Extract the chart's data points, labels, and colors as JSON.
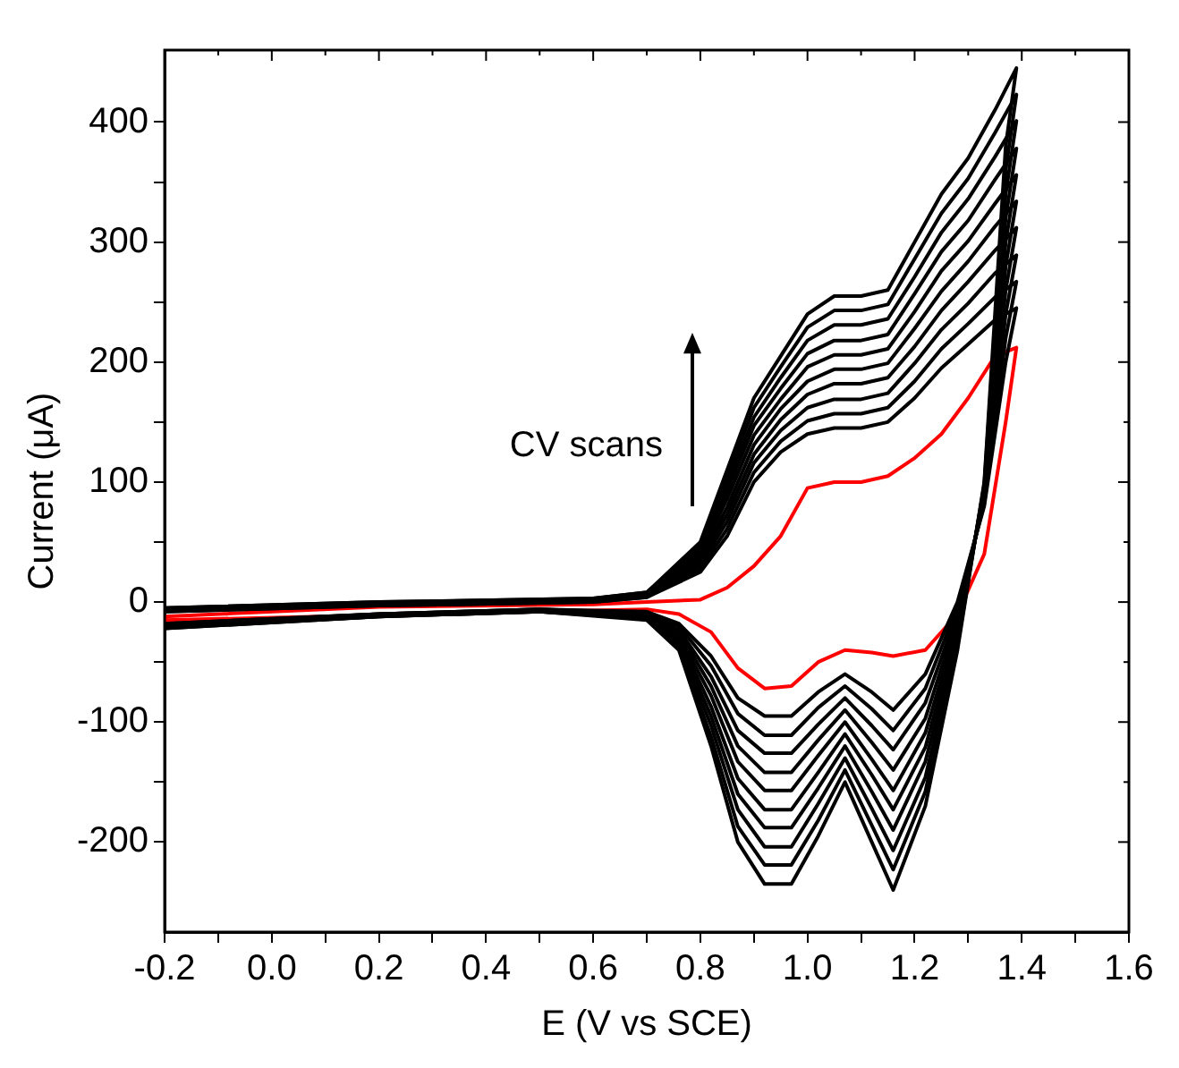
{
  "chart_data": {
    "type": "line",
    "xlabel": "E (V vs SCE)",
    "ylabel": "Current (μA)",
    "annotations": [
      "CV scans"
    ],
    "marker": "none",
    "line_style": "solid",
    "grid": false,
    "legend": false,
    "xlim": [
      -0.2,
      1.6
    ],
    "ylim": [
      -275,
      460
    ],
    "xticks": [
      -0.2,
      {
        "value": -0.1,
        "label": null
      },
      "0.0",
      {
        "value": 0.1,
        "label": null
      },
      0.2,
      {
        "value": 0.3,
        "label": null
      },
      0.4,
      {
        "value": 0.5,
        "label": null
      },
      0.6,
      {
        "value": 0.7,
        "label": null
      },
      0.8,
      {
        "value": 0.9,
        "label": null
      },
      {
        "value": 1.0,
        "label": "1.0"
      },
      {
        "value": 1.1,
        "label": null
      },
      1.2,
      {
        "value": 1.3,
        "label": null
      },
      1.4,
      {
        "value": 1.5,
        "label": null
      },
      1.6
    ],
    "yticks": [
      -200,
      {
        "value": -150,
        "label": null
      },
      -100,
      {
        "value": -50,
        "label": null
      },
      0,
      {
        "value": 50,
        "label": null
      },
      100,
      {
        "value": 150,
        "label": null
      },
      200,
      {
        "value": 250,
        "label": null
      },
      300,
      {
        "value": 350,
        "label": null
      },
      400
    ],
    "x": [
      -0.2,
      0.2,
      0.6,
      0.7,
      0.8,
      0.85,
      0.9,
      0.95,
      1.0,
      1.05,
      1.1,
      1.15,
      1.2,
      1.25,
      1.3,
      1.35,
      1.39,
      1.37,
      1.33,
      1.28,
      1.22,
      1.16,
      1.12,
      1.07,
      1.02,
      0.97,
      0.92,
      0.87,
      0.82,
      0.76,
      0.7,
      0.5,
      0.2,
      -0.2
    ],
    "series": [
      {
        "color": "#000000",
        "values": [
          -8,
          -3,
          0,
          4,
          25,
          55,
          100,
          125,
          140,
          145,
          145,
          150,
          170,
          195,
          215,
          235,
          245,
          200,
          80,
          0,
          -60,
          -90,
          -75,
          -60,
          -75,
          -95,
          -95,
          -80,
          -45,
          -18,
          -8,
          -6,
          -10,
          -18
        ]
      },
      {
        "color": "#000000",
        "values": [
          -8,
          -3,
          0,
          4,
          28,
          61,
          108,
          134,
          151,
          157,
          157,
          162,
          184,
          211,
          232,
          254,
          267,
          220,
          82,
          -4,
          -72,
          -107,
          -89,
          -70,
          -88,
          -111,
          -111,
          -93,
          -53,
          -20,
          -9,
          -6,
          -10,
          -18
        ]
      },
      {
        "color": "#000000",
        "values": [
          -7,
          -2,
          1,
          5,
          31,
          67,
          116,
          143,
          162,
          169,
          169,
          174,
          199,
          227,
          249,
          274,
          289,
          240,
          84,
          -9,
          -84,
          -123,
          -103,
          -80,
          -102,
          -126,
          -126,
          -107,
          -62,
          -23,
          -10,
          -6,
          -10,
          -19
        ]
      },
      {
        "color": "#000000",
        "values": [
          -7,
          -2,
          1,
          5,
          33,
          73,
          123,
          152,
          173,
          182,
          182,
          187,
          213,
          243,
          267,
          293,
          312,
          260,
          87,
          -13,
          -97,
          -140,
          -117,
          -90,
          -115,
          -142,
          -142,
          -120,
          -70,
          -25,
          -10,
          -7,
          -11,
          -19
        ]
      },
      {
        "color": "#000000",
        "values": [
          -7,
          -2,
          1,
          6,
          36,
          79,
          131,
          161,
          184,
          194,
          194,
          199,
          228,
          259,
          284,
          313,
          334,
          280,
          89,
          -18,
          -109,
          -157,
          -131,
          -100,
          -128,
          -157,
          -157,
          -133,
          -78,
          -28,
          -11,
          -7,
          -11,
          -20
        ]
      },
      {
        "color": "#000000",
        "values": [
          -6,
          -1,
          2,
          6,
          39,
          86,
          139,
          169,
          196,
          206,
          206,
          211,
          242,
          276,
          301,
          332,
          356,
          300,
          91,
          -22,
          -121,
          -173,
          -144,
          -110,
          -142,
          -173,
          -173,
          -147,
          -87,
          -30,
          -12,
          -7,
          -11,
          -20
        ]
      },
      {
        "color": "#000000",
        "values": [
          -6,
          -1,
          2,
          7,
          42,
          92,
          147,
          178,
          207,
          218,
          218,
          223,
          257,
          292,
          318,
          352,
          378,
          320,
          93,
          -27,
          -133,
          -190,
          -158,
          -120,
          -155,
          -188,
          -188,
          -160,
          -95,
          -33,
          -13,
          -7,
          -11,
          -21
        ]
      },
      {
        "color": "#000000",
        "values": [
          -6,
          -1,
          2,
          7,
          44,
          98,
          154,
          187,
          218,
          231,
          231,
          236,
          271,
          308,
          336,
          371,
          401,
          340,
          96,
          -31,
          -146,
          -207,
          -172,
          -130,
          -168,
          -204,
          -204,
          -173,
          -103,
          -35,
          -13,
          -8,
          -12,
          -21
        ]
      },
      {
        "color": "#000000",
        "values": [
          -5,
          0,
          3,
          8,
          47,
          104,
          162,
          196,
          229,
          243,
          243,
          248,
          286,
          324,
          353,
          391,
          423,
          360,
          98,
          -36,
          -158,
          -223,
          -186,
          -140,
          -182,
          -219,
          -219,
          -187,
          -112,
          -38,
          -14,
          -8,
          -12,
          -22
        ]
      },
      {
        "color": "#000000",
        "values": [
          -5,
          0,
          3,
          8,
          50,
          110,
          170,
          205,
          240,
          255,
          255,
          260,
          300,
          340,
          370,
          410,
          445,
          380,
          100,
          -40,
          -170,
          -240,
          -200,
          -150,
          -195,
          -235,
          -235,
          -200,
          -120,
          -40,
          -15,
          -8,
          -12,
          -22
        ]
      },
      {
        "color": "#ff0000",
        "values": [
          -12,
          -4,
          -2,
          0,
          2,
          12,
          30,
          55,
          95,
          100,
          100,
          105,
          120,
          140,
          170,
          205,
          212,
          150,
          40,
          -10,
          -40,
          -45,
          -42,
          -40,
          -50,
          -70,
          -72,
          -55,
          -25,
          -10,
          -6,
          -8,
          -11,
          -15
        ]
      }
    ]
  }
}
